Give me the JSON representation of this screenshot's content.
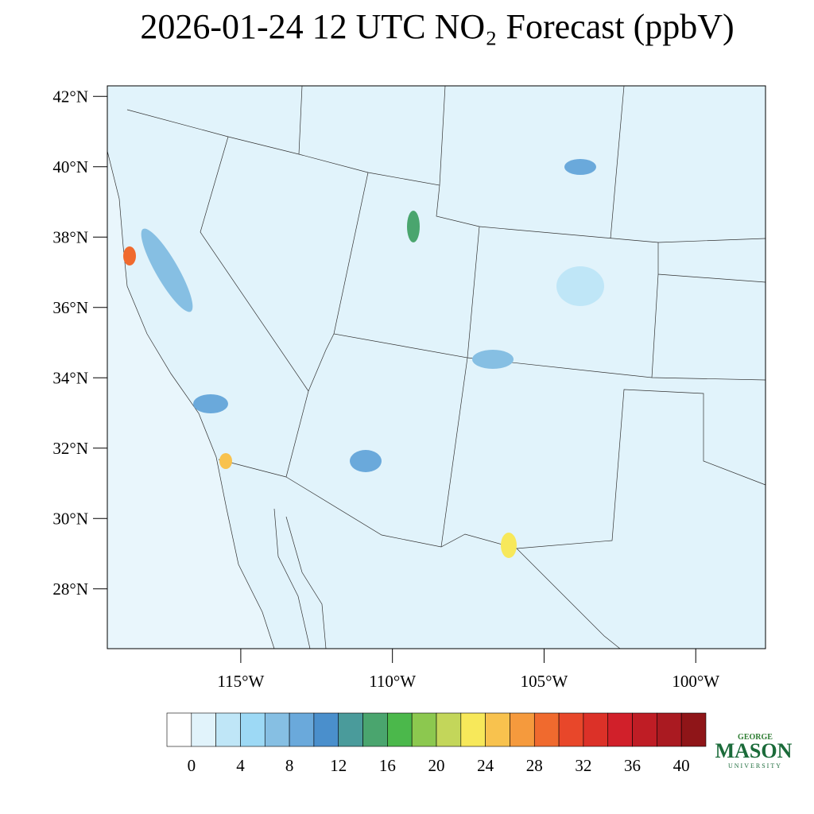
{
  "title": "2026-01-24 12 UTC NO₂ Forecast (ppbV)",
  "map": {
    "ylim": [
      26.3,
      42.3
    ],
    "yticks": [
      {
        "value": 42,
        "label": "42°N"
      },
      {
        "value": 40,
        "label": "40°N"
      },
      {
        "value": 38,
        "label": "38°N"
      },
      {
        "value": 36,
        "label": "36°N"
      },
      {
        "value": 34,
        "label": "34°N"
      },
      {
        "value": 32,
        "label": "32°N"
      },
      {
        "value": 30,
        "label": "30°N"
      },
      {
        "value": 28,
        "label": "28°N"
      }
    ],
    "xlim": [
      -119.4,
      -97.7
    ],
    "xticks": [
      {
        "value": -115,
        "label": "115°W"
      },
      {
        "value": -110,
        "label": "110°W"
      },
      {
        "value": -105,
        "label": "105°W"
      },
      {
        "value": -100,
        "label": "100°W"
      }
    ]
  },
  "colorbar": {
    "levels": [
      0,
      2,
      4,
      6,
      8,
      10,
      12,
      14,
      16,
      18,
      20,
      22,
      24,
      26,
      28,
      30,
      32,
      34,
      36,
      38,
      40
    ],
    "colors": [
      "#ffffff",
      "#e1f3fb",
      "#bfe6f7",
      "#9dd9f5",
      "#86bfe3",
      "#6aa9db",
      "#4a8fcc",
      "#4a9b9b",
      "#4aa56e",
      "#4bb84b",
      "#8cc84f",
      "#c3d65a",
      "#f7e85a",
      "#f8c24e",
      "#f59a3d",
      "#f06a2e",
      "#e8472a",
      "#dc3128",
      "#d1202a",
      "#bf1d25",
      "#aa1a21",
      "#8f1518"
    ],
    "ticks": [
      0,
      4,
      8,
      12,
      16,
      20,
      24,
      28,
      32,
      36,
      40
    ]
  },
  "logo": {
    "top": "GEORGE",
    "main": "MASON",
    "bottom": "UNIVERSITY"
  }
}
